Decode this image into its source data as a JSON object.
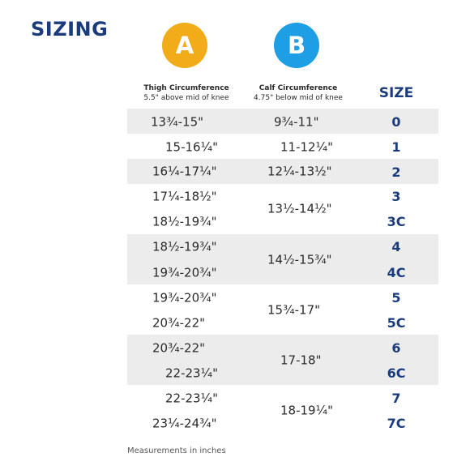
{
  "title": "SIZING",
  "badges": {
    "a": {
      "label": "A",
      "color": "#f2ac1a"
    },
    "b": {
      "label": "B",
      "color": "#1e9ee5"
    }
  },
  "headers": {
    "thigh_title": "Thigh Circumference",
    "thigh_sub": "5.5\" above mid of knee",
    "calf_title": "Calf Circumference",
    "calf_sub": "4.75\" below mid of knee",
    "size_title": "SIZE"
  },
  "rows": [
    {
      "thigh": "13¾-15\"",
      "calf": "9¾-11\"",
      "size": "0"
    },
    {
      "thigh": "15-16¼\"",
      "calf": "11-12¼\"",
      "size": "1"
    },
    {
      "thigh": "16¼-17¼\"",
      "calf": "12¼-13½\"",
      "size": "2"
    },
    {
      "thigh": "17¼-18½\"",
      "calf": "13½-14½\"",
      "size": "3"
    },
    {
      "thigh": "18½-19¾\"",
      "calf": "",
      "size": "3C"
    },
    {
      "thigh": "18½-19¾\"",
      "calf": "14½-15¾\"",
      "size": "4"
    },
    {
      "thigh": "19¾-20¾\"",
      "calf": "",
      "size": "4C"
    },
    {
      "thigh": "19¾-20¾\"",
      "calf": "15¾-17\"",
      "size": "5"
    },
    {
      "thigh": "20¾-22\"",
      "calf": "",
      "size": "5C"
    },
    {
      "thigh": "20¾-22\"",
      "calf": "17-18\"",
      "size": "6"
    },
    {
      "thigh": "22-23¼\"",
      "calf": "",
      "size": "6C"
    },
    {
      "thigh": "22-23¼\"",
      "calf": "18-19¼\"",
      "size": "7"
    },
    {
      "thigh": "23¼-24¾\"",
      "calf": "",
      "size": "7C"
    }
  ],
  "footnote": "Measurements in inches",
  "colors": {
    "title": "#1b3c7c",
    "size_text": "#1b3c7c",
    "row_shade": "#ececec"
  }
}
